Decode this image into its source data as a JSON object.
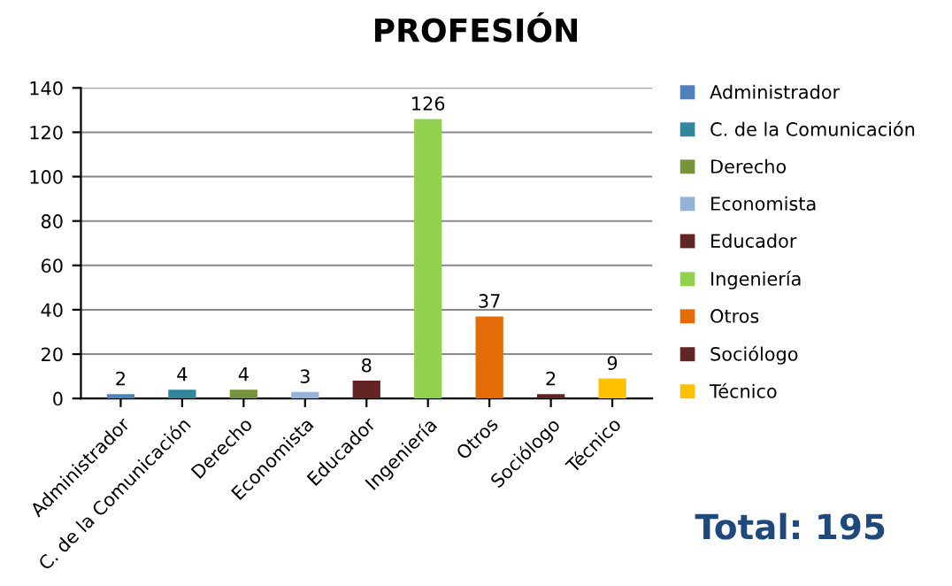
{
  "chart_data": {
    "type": "bar",
    "title": "PROFESIÓN",
    "categories": [
      "Administrador",
      "C. de la Comunicación",
      "Derecho",
      "Economista",
      "Educador",
      "Ingeniería",
      "Otros",
      "Sociólogo",
      "Técnico"
    ],
    "series": [
      {
        "name": "Administrador",
        "color": "#4f81bd",
        "values": [
          2,
          null,
          null,
          null,
          null,
          null,
          null,
          null,
          null
        ]
      },
      {
        "name": "C. de la Comunicación",
        "color": "#31859c",
        "values": [
          null,
          4,
          null,
          null,
          null,
          null,
          null,
          null,
          null
        ]
      },
      {
        "name": "Derecho",
        "color": "#77933c",
        "values": [
          null,
          null,
          4,
          null,
          null,
          null,
          null,
          null,
          null
        ]
      },
      {
        "name": "Economista",
        "color": "#95b3d7",
        "values": [
          null,
          null,
          null,
          3,
          null,
          null,
          null,
          null,
          null
        ]
      },
      {
        "name": "Educador",
        "color": "#632523",
        "values": [
          null,
          null,
          null,
          null,
          8,
          null,
          null,
          null,
          null
        ]
      },
      {
        "name": "Ingeniería",
        "color": "#92d050",
        "values": [
          null,
          null,
          null,
          null,
          null,
          126,
          null,
          null,
          null
        ]
      },
      {
        "name": "Otros",
        "color": "#e36c09",
        "values": [
          null,
          null,
          null,
          null,
          null,
          null,
          37,
          null,
          null
        ]
      },
      {
        "name": "Sociólogo",
        "color": "#632523",
        "values": [
          null,
          null,
          null,
          null,
          null,
          null,
          null,
          2,
          null
        ]
      },
      {
        "name": "Técnico",
        "color": "#ffc000",
        "values": [
          null,
          null,
          null,
          null,
          null,
          null,
          null,
          null,
          9
        ]
      }
    ],
    "ylim": [
      0,
      140
    ],
    "yticks": [
      0,
      20,
      40,
      60,
      80,
      100,
      120,
      140
    ],
    "grid": "y",
    "legend": "right",
    "data_labels": true,
    "annotations": [
      "Total: 195"
    ]
  }
}
